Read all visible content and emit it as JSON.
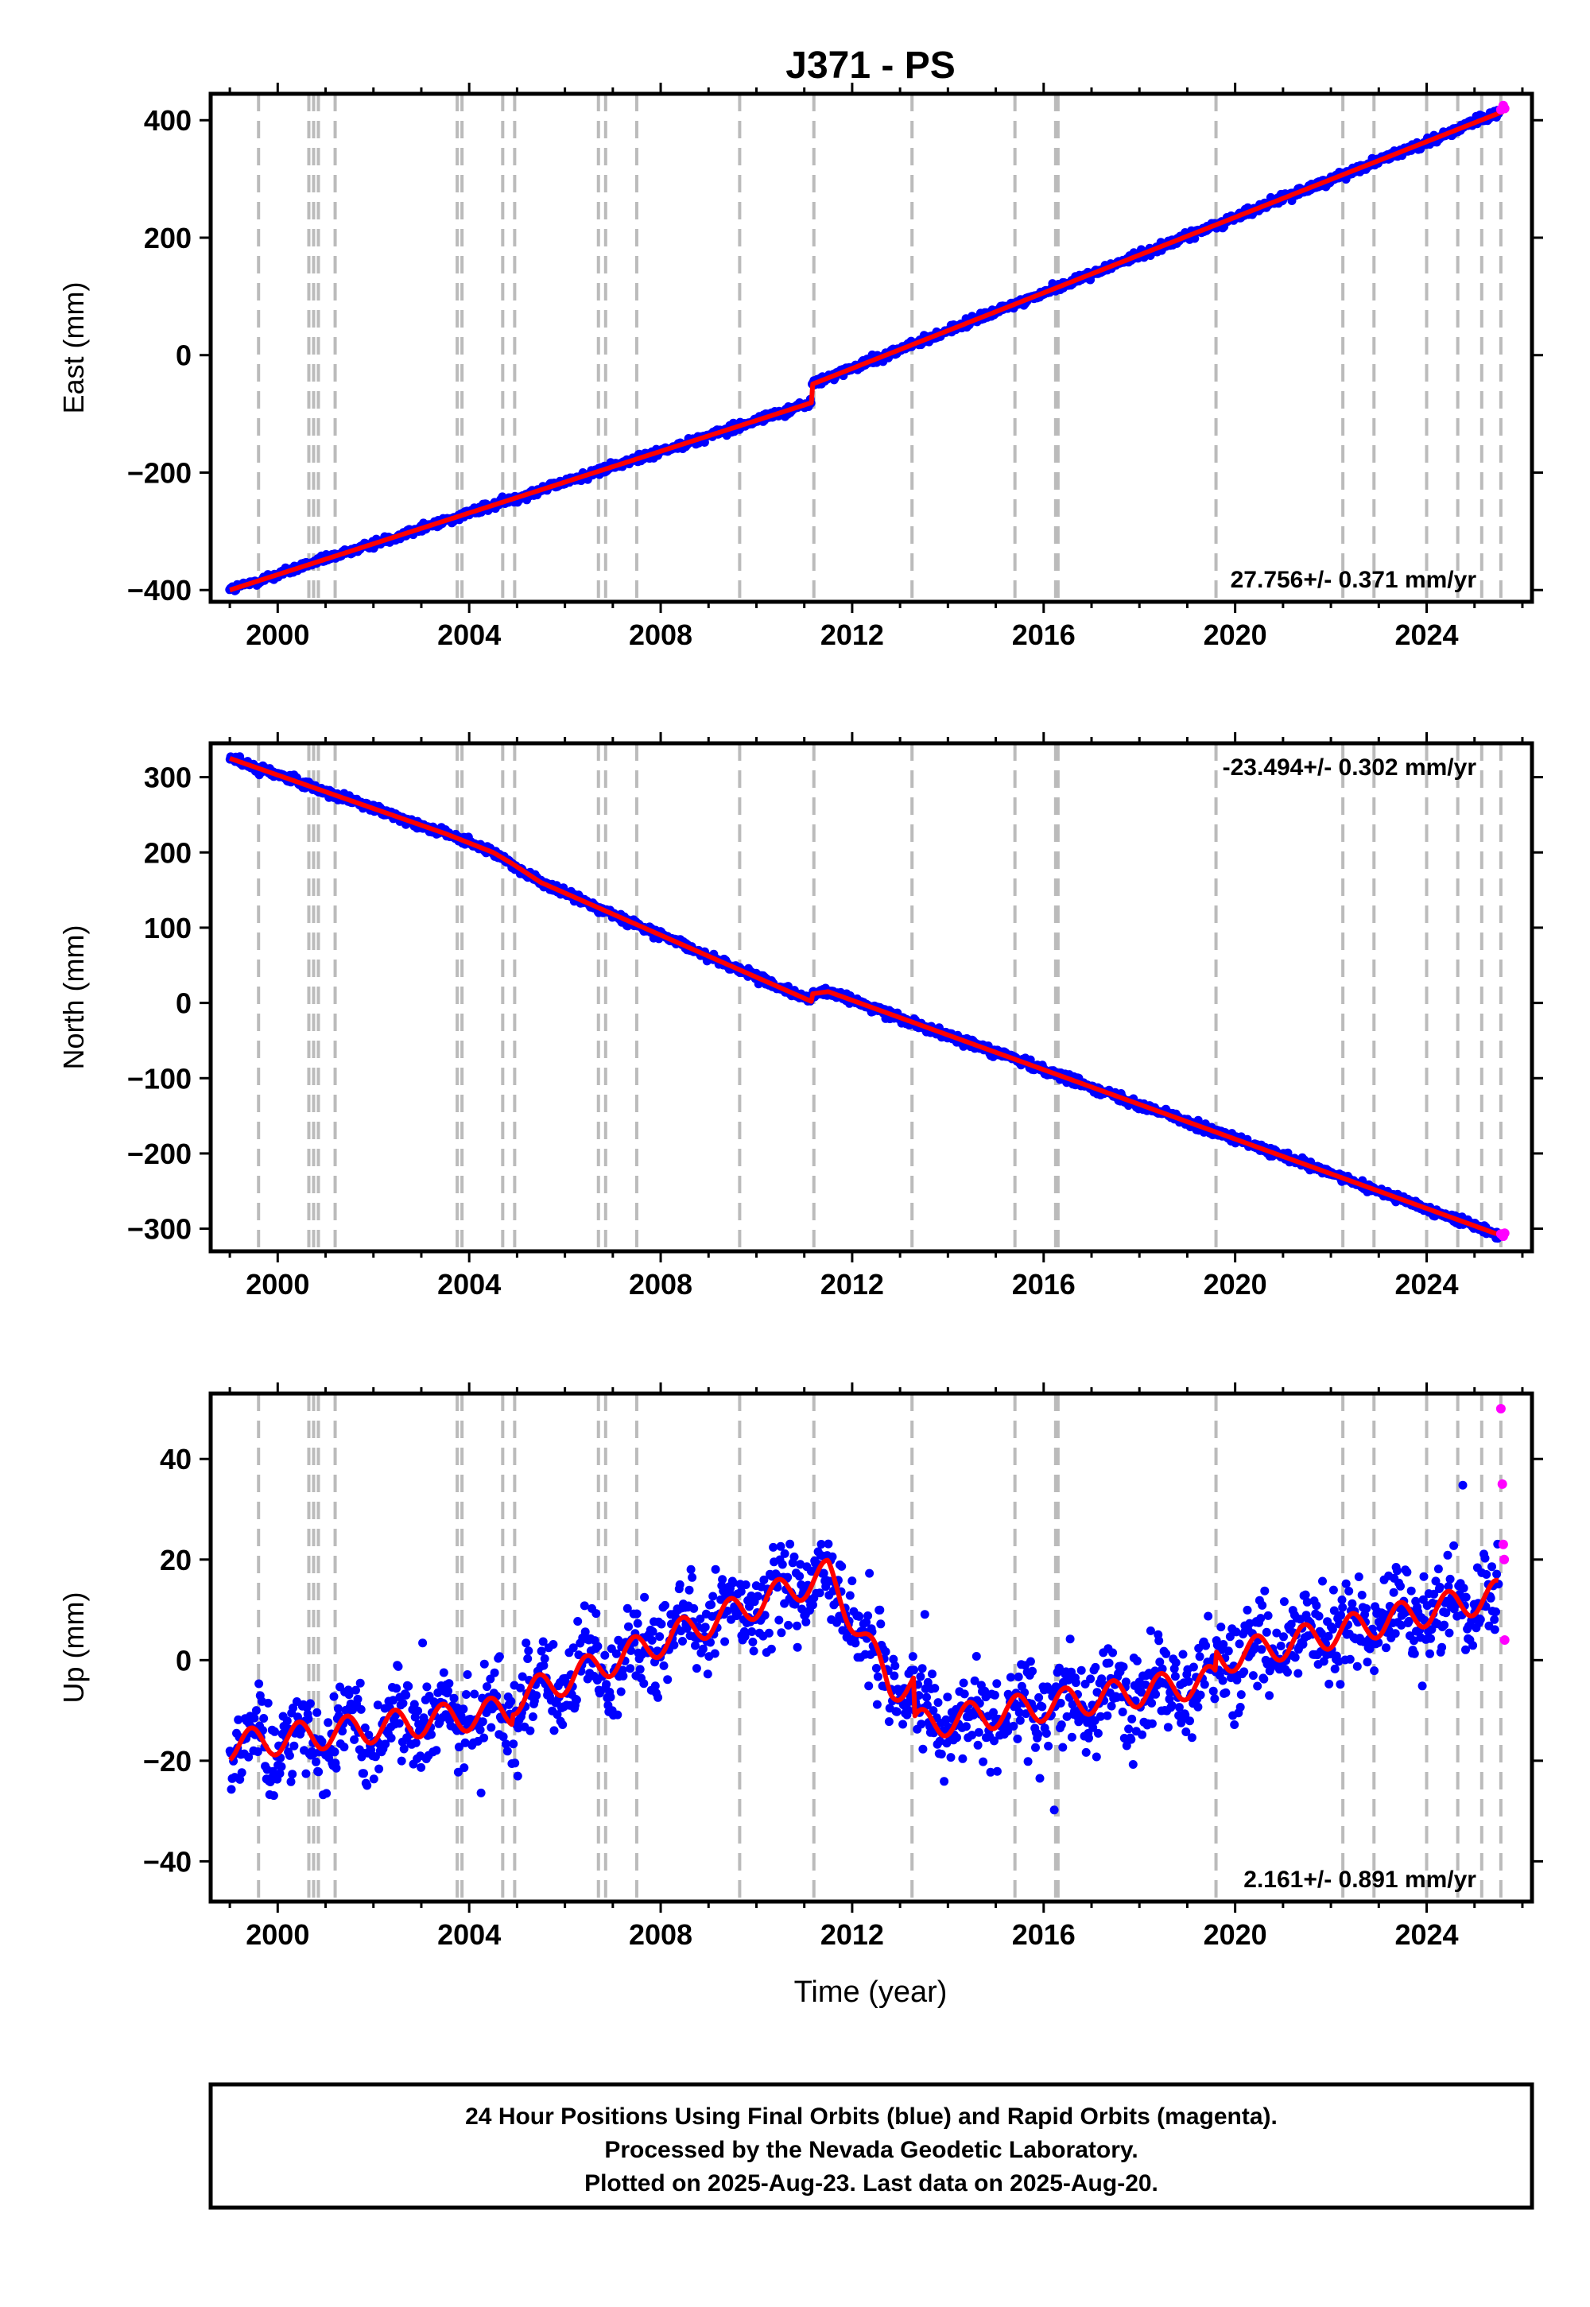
{
  "figure": {
    "title": "J371 - PS",
    "xlabel": "Time (year)",
    "footer": [
      "24 Hour Positions Using Final Orbits (blue) and Rapid Orbits (magenta).",
      "Processed by the Nevada Geodetic Laboratory.",
      "Plotted on 2025-Aug-23. Last data on 2025-Aug-20."
    ]
  },
  "colors": {
    "final": "#0000ff",
    "rapid": "#ff00ff",
    "model": "#ff0000",
    "breaks": "#bbbbbb",
    "frame": "#000000"
  },
  "chart_data": [
    {
      "type": "scatter",
      "ylabel": "East (mm)",
      "rate": "27.756+/- 0.371 mm/yr",
      "rate_position": "bottom-right",
      "xlim": [
        1998.6,
        2026.2
      ],
      "ylim": [
        -420,
        445
      ],
      "xticks": [
        2000,
        2004,
        2008,
        2012,
        2016,
        2020,
        2024
      ],
      "yticks": [
        -400,
        -200,
        0,
        200,
        400
      ],
      "model_line": {
        "x": [
          1999.0,
          2011.15,
          2011.15,
          2025.6
        ],
        "y": [
          -400,
          -81,
          -50,
          415
        ]
      },
      "rapid_points": {
        "x": [
          2025.55,
          2025.6,
          2025.63
        ],
        "y": [
          418,
          425,
          420
        ]
      },
      "noise_mm": 5,
      "seasonal_mm": 0
    },
    {
      "type": "scatter",
      "ylabel": "North (mm)",
      "rate": "-23.494+/- 0.302 mm/yr",
      "rate_position": "top-right",
      "xlim": [
        1998.6,
        2026.2
      ],
      "ylim": [
        -330,
        345
      ],
      "xticks": [
        2000,
        2004,
        2008,
        2012,
        2016,
        2020,
        2024
      ],
      "yticks": [
        -300,
        -200,
        -100,
        0,
        100,
        200,
        300
      ],
      "model_line": {
        "x": [
          1999.0,
          2003.5,
          2004.5,
          2004.9,
          2005.5,
          2011.15,
          2011.15,
          2011.5,
          2025.6
        ],
        "y": [
          325,
          225,
          200,
          185,
          160,
          2,
          12,
          15,
          -310
        ]
      },
      "rapid_points": {
        "x": [
          2025.55,
          2025.6,
          2025.63
        ],
        "y": [
          -307,
          -310,
          -306
        ]
      },
      "noise_mm": 4,
      "seasonal_mm": 0
    },
    {
      "type": "scatter",
      "ylabel": "Up (mm)",
      "rate": "2.161+/- 0.891 mm/yr",
      "rate_position": "bottom-right",
      "xlim": [
        1998.6,
        2026.2
      ],
      "ylim": [
        -48,
        53
      ],
      "xticks": [
        2000,
        2004,
        2008,
        2012,
        2016,
        2020,
        2024
      ],
      "yticks": [
        -40,
        -20,
        0,
        20,
        40
      ],
      "model_line": {
        "x": [
          1999.0,
          2004.9,
          2004.9,
          2011.5,
          2012.8,
          2013.3,
          2013.3,
          2019.6,
          2019.6,
          2025.5
        ],
        "y": [
          -17,
          -10,
          -8,
          17,
          -5,
          -5,
          -13,
          -4,
          0,
          13
        ]
      },
      "rapid_points": {
        "x": [
          2025.55,
          2025.58,
          2025.6,
          2025.62,
          2025.63
        ],
        "y": [
          50,
          35,
          23,
          20,
          4
        ]
      },
      "noise_mm": 6,
      "seasonal_mm": 3
    }
  ],
  "breaks": [
    1999.6,
    2000.65,
    2000.75,
    2000.85,
    2001.2,
    2003.75,
    2003.85,
    2004.7,
    2004.95,
    2006.7,
    2006.85,
    2007.5,
    2009.65,
    2011.2,
    2013.25,
    2015.4,
    2016.25,
    2016.3,
    2019.6,
    2022.25,
    2022.9,
    2024.0,
    2024.65,
    2025.15,
    2025.55
  ]
}
